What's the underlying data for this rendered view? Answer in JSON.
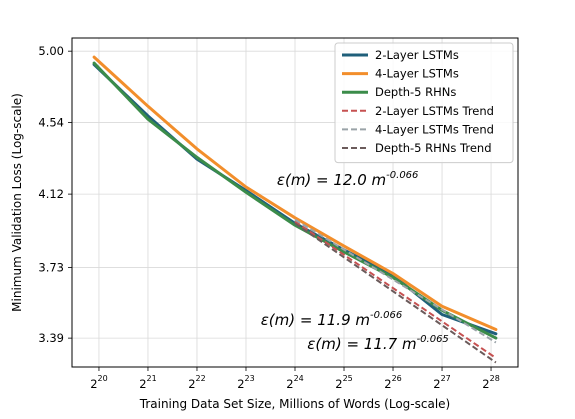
{
  "chart_data": {
    "type": "line",
    "xlabel": "Training Data Set Size, Millions of Words (Log-scale)",
    "ylabel": "Minimum Validation Loss (Log-scale)",
    "x_scale": "log2",
    "y_scale": "log",
    "xlim": [
      19.45,
      28.55
    ],
    "ylim": [
      3.26,
      5.09
    ],
    "x_ticks": [
      {
        "value": 20,
        "base": "2",
        "exp": "20"
      },
      {
        "value": 21,
        "base": "2",
        "exp": "21"
      },
      {
        "value": 22,
        "base": "2",
        "exp": "22"
      },
      {
        "value": 23,
        "base": "2",
        "exp": "23"
      },
      {
        "value": 24,
        "base": "2",
        "exp": "24"
      },
      {
        "value": 25,
        "base": "2",
        "exp": "25"
      },
      {
        "value": 26,
        "base": "2",
        "exp": "26"
      },
      {
        "value": 27,
        "base": "2",
        "exp": "27"
      },
      {
        "value": 28,
        "base": "2",
        "exp": "28"
      }
    ],
    "y_ticks": [
      {
        "value": 5.0,
        "label": "5.00"
      },
      {
        "value": 4.54,
        "label": "4.54"
      },
      {
        "value": 4.12,
        "label": "4.12"
      },
      {
        "value": 3.73,
        "label": "3.73"
      },
      {
        "value": 3.39,
        "label": "3.39"
      }
    ],
    "grid": true,
    "legend_position": "top-right",
    "series": [
      {
        "name": "2-Layer LSTMs",
        "color": "#1f5f7a",
        "style": "solid",
        "x": [
          19.9,
          21.0,
          22.0,
          23.0,
          24.0,
          25.0,
          26.0,
          27.0,
          28.1
        ],
        "y": [
          4.91,
          4.58,
          4.32,
          4.14,
          3.96,
          3.82,
          3.69,
          3.5,
          3.41
        ]
      },
      {
        "name": "4-Layer LSTMs",
        "color": "#f28e2b",
        "style": "solid",
        "x": [
          19.9,
          21.0,
          22.0,
          23.0,
          24.0,
          25.0,
          26.0,
          27.0,
          28.1
        ],
        "y": [
          4.96,
          4.64,
          4.38,
          4.16,
          3.99,
          3.84,
          3.7,
          3.54,
          3.43
        ]
      },
      {
        "name": "Depth-5 RHNs",
        "color": "#3b8c4a",
        "style": "solid",
        "x": [
          19.9,
          21.0,
          22.0,
          23.0,
          24.0,
          25.0,
          26.0,
          27.0,
          28.1
        ],
        "y": [
          4.92,
          4.56,
          4.33,
          4.13,
          3.95,
          3.81,
          3.68,
          3.52,
          3.39
        ]
      },
      {
        "name": "2-Layer LSTMs Trend",
        "color": "#c65151",
        "style": "dashed",
        "x": [
          24.0,
          28.1
        ],
        "y": [
          3.97,
          3.3
        ]
      },
      {
        "name": "4-Layer LSTMs Trend",
        "color": "#9aa3a8",
        "style": "dashed",
        "x": [
          24.0,
          28.1
        ],
        "y": [
          3.98,
          3.37
        ]
      },
      {
        "name": "Depth-5 RHNs Trend",
        "color": "#6b5b5b",
        "style": "dashed",
        "x": [
          24.0,
          28.1
        ],
        "y": [
          3.96,
          3.28
        ]
      }
    ],
    "annotations": [
      {
        "text": "ε(m) = 12.0 m",
        "sup": "-0.066",
        "x": 23.63,
        "y": 4.17
      },
      {
        "text": "ε(m) = 11.9 m",
        "sup": "-0.066",
        "x": 23.3,
        "y": 3.45
      },
      {
        "text": "ε(m) = 11.7 m",
        "sup": "-0.065",
        "x": 24.25,
        "y": 3.34
      }
    ]
  }
}
